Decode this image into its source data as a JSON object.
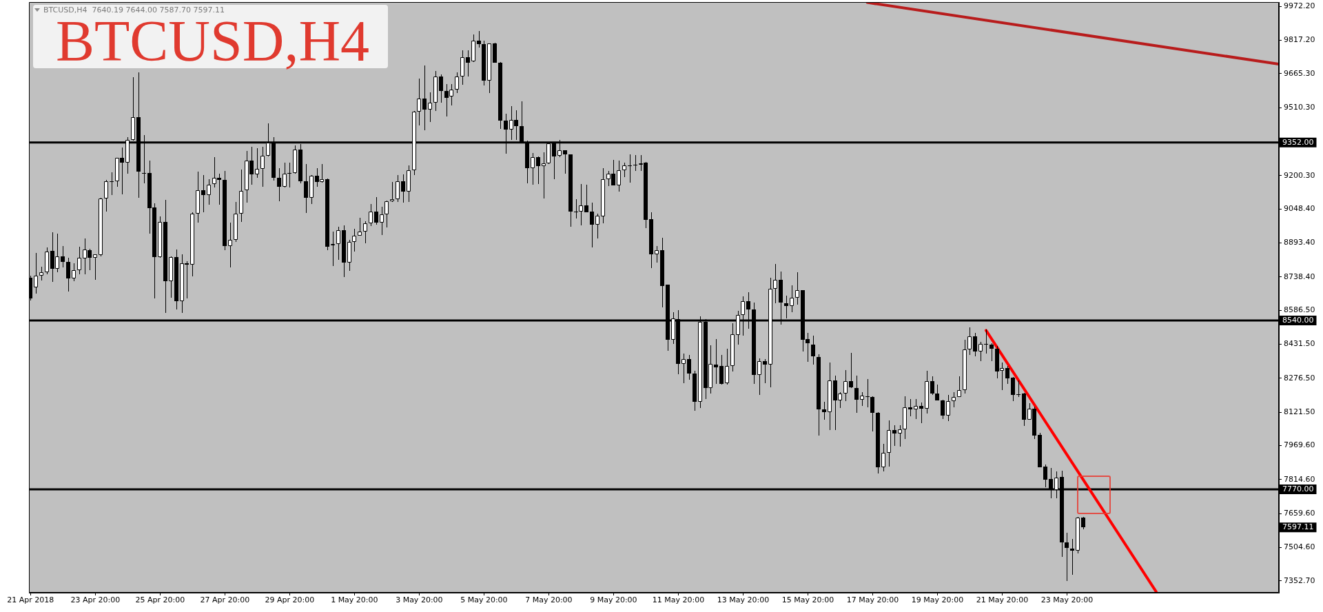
{
  "chart_data": {
    "type": "candlestick",
    "title": "BTCUSD,H4",
    "subtitle": "BTCUSD,H4  7640.19 7644.00 7587.70 7597.11",
    "x": [
      "2018-04-21T20:00",
      "2018-04-22T00:00",
      "2018-04-22T04:00",
      "2018-04-22T08:00",
      "2018-04-22T12:00",
      "2018-04-22T16:00",
      "2018-04-22T20:00",
      "2018-04-23T00:00",
      "2018-04-23T04:00",
      "2018-04-23T08:00",
      "2018-04-23T12:00",
      "2018-04-23T16:00",
      "2018-04-23T20:00",
      "2018-04-24T00:00",
      "2018-04-24T04:00",
      "2018-04-24T08:00",
      "2018-04-24T12:00",
      "2018-04-24T16:00",
      "2018-04-24T20:00",
      "2018-04-25T00:00",
      "2018-04-25T04:00",
      "2018-04-25T08:00",
      "2018-04-25T12:00",
      "2018-04-25T16:00",
      "2018-04-25T20:00",
      "2018-04-26T00:00",
      "2018-04-26T04:00",
      "2018-04-26T08:00",
      "2018-04-26T12:00",
      "2018-04-26T16:00",
      "2018-04-26T20:00",
      "2018-04-27T00:00",
      "2018-04-27T04:00",
      "2018-04-27T08:00",
      "2018-04-27T12:00",
      "2018-04-27T16:00",
      "2018-04-27T20:00",
      "2018-04-28T00:00",
      "2018-04-28T04:00",
      "2018-04-28T08:00",
      "2018-04-28T12:00",
      "2018-04-28T16:00",
      "2018-04-28T20:00",
      "2018-04-29T00:00",
      "2018-04-29T04:00",
      "2018-04-29T08:00",
      "2018-04-29T12:00",
      "2018-04-29T16:00",
      "2018-04-29T20:00",
      "2018-04-30T00:00",
      "2018-04-30T04:00",
      "2018-04-30T08:00",
      "2018-04-30T12:00",
      "2018-04-30T16:00",
      "2018-04-30T20:00",
      "2018-05-01T00:00",
      "2018-05-01T04:00",
      "2018-05-01T08:00",
      "2018-05-01T12:00",
      "2018-05-01T16:00",
      "2018-05-01T20:00",
      "2018-05-02T00:00",
      "2018-05-02T04:00",
      "2018-05-02T08:00",
      "2018-05-02T12:00",
      "2018-05-02T16:00",
      "2018-05-02T20:00",
      "2018-05-03T00:00",
      "2018-05-03T04:00",
      "2018-05-03T08:00",
      "2018-05-03T12:00",
      "2018-05-03T16:00",
      "2018-05-03T20:00",
      "2018-05-04T00:00",
      "2018-05-04T04:00",
      "2018-05-04T08:00",
      "2018-05-04T12:00",
      "2018-05-04T16:00",
      "2018-05-04T20:00",
      "2018-05-05T00:00",
      "2018-05-05T04:00",
      "2018-05-05T08:00",
      "2018-05-05T12:00",
      "2018-05-05T16:00",
      "2018-05-05T20:00",
      "2018-05-06T00:00",
      "2018-05-06T04:00",
      "2018-05-06T08:00",
      "2018-05-06T12:00",
      "2018-05-06T16:00",
      "2018-05-06T20:00",
      "2018-05-07T00:00",
      "2018-05-07T04:00",
      "2018-05-07T08:00",
      "2018-05-07T12:00",
      "2018-05-07T16:00",
      "2018-05-07T20:00",
      "2018-05-08T00:00",
      "2018-05-08T04:00",
      "2018-05-08T08:00",
      "2018-05-08T12:00",
      "2018-05-08T16:00",
      "2018-05-08T20:00",
      "2018-05-09T00:00",
      "2018-05-09T04:00",
      "2018-05-09T08:00",
      "2018-05-09T12:00",
      "2018-05-09T16:00",
      "2018-05-09T20:00",
      "2018-05-10T00:00",
      "2018-05-10T04:00",
      "2018-05-10T08:00",
      "2018-05-10T12:00",
      "2018-05-10T16:00",
      "2018-05-10T20:00",
      "2018-05-11T00:00",
      "2018-05-11T04:00",
      "2018-05-11T08:00",
      "2018-05-11T12:00",
      "2018-05-11T16:00",
      "2018-05-11T20:00",
      "2018-05-12T00:00",
      "2018-05-12T04:00",
      "2018-05-12T08:00",
      "2018-05-12T12:00",
      "2018-05-12T16:00",
      "2018-05-12T20:00",
      "2018-05-13T00:00",
      "2018-05-13T04:00",
      "2018-05-13T08:00",
      "2018-05-13T12:00",
      "2018-05-13T16:00",
      "2018-05-13T20:00",
      "2018-05-14T00:00",
      "2018-05-14T04:00",
      "2018-05-14T08:00",
      "2018-05-14T12:00",
      "2018-05-14T16:00",
      "2018-05-14T20:00",
      "2018-05-15T00:00",
      "2018-05-15T04:00",
      "2018-05-15T08:00",
      "2018-05-15T12:00",
      "2018-05-15T16:00",
      "2018-05-15T20:00",
      "2018-05-16T00:00",
      "2018-05-16T04:00",
      "2018-05-16T08:00",
      "2018-05-16T12:00",
      "2018-05-16T16:00",
      "2018-05-16T20:00",
      "2018-05-17T00:00",
      "2018-05-17T04:00",
      "2018-05-17T08:00",
      "2018-05-17T12:00",
      "2018-05-17T16:00",
      "2018-05-17T20:00",
      "2018-05-18T00:00",
      "2018-05-18T04:00",
      "2018-05-18T08:00",
      "2018-05-18T12:00",
      "2018-05-18T16:00",
      "2018-05-18T20:00",
      "2018-05-19T00:00",
      "2018-05-19T04:00",
      "2018-05-19T08:00",
      "2018-05-19T12:00",
      "2018-05-19T16:00",
      "2018-05-19T20:00",
      "2018-05-20T00:00",
      "2018-05-20T04:00",
      "2018-05-20T08:00",
      "2018-05-20T12:00",
      "2018-05-20T16:00",
      "2018-05-20T20:00",
      "2018-05-21T00:00",
      "2018-05-21T04:00",
      "2018-05-21T08:00",
      "2018-05-21T12:00",
      "2018-05-21T16:00",
      "2018-05-21T20:00",
      "2018-05-22T00:00",
      "2018-05-22T04:00",
      "2018-05-22T08:00",
      "2018-05-22T12:00",
      "2018-05-22T16:00",
      "2018-05-22T20:00",
      "2018-05-23T00:00",
      "2018-05-23T04:00",
      "2018-05-23T08:00",
      "2018-05-23T12:00",
      "2018-05-23T16:00",
      "2018-05-23T20:00",
      "2018-05-24T00:00",
      "2018-05-24T04:00",
      "2018-05-24T08:00"
    ],
    "ohlc": [
      [
        8734,
        8745,
        8630,
        8640
      ],
      [
        8690,
        8849,
        8663,
        8744
      ],
      [
        8744,
        8786,
        8723,
        8760
      ],
      [
        8760,
        8872,
        8750,
        8856
      ],
      [
        8857,
        8941,
        8715,
        8776
      ],
      [
        8776,
        8935,
        8760,
        8833
      ],
      [
        8833,
        8879,
        8781,
        8807
      ],
      [
        8807,
        8825,
        8671,
        8732
      ],
      [
        8732,
        8802,
        8718,
        8771
      ],
      [
        8771,
        8875,
        8750,
        8825
      ],
      [
        8823,
        8914,
        8750,
        8863
      ],
      [
        8860,
        8867,
        8771,
        8825
      ],
      [
        8825,
        8843,
        8726,
        8841
      ],
      [
        8839,
        9098,
        8833,
        9095
      ],
      [
        9095,
        9182,
        9038,
        9174
      ],
      [
        9174,
        9216,
        9113,
        9174
      ],
      [
        9174,
        9283,
        9151,
        9281
      ],
      [
        9281,
        9328,
        9116,
        9261
      ],
      [
        9261,
        9375,
        9211,
        9363
      ],
      [
        9363,
        9648,
        9360,
        9467
      ],
      [
        9467,
        9672,
        9099,
        9218
      ],
      [
        9213,
        9386,
        9167,
        9212
      ],
      [
        9213,
        9268,
        8935,
        9053
      ],
      [
        9056,
        9074,
        8640,
        8830
      ],
      [
        8830,
        9015,
        8826,
        8989
      ],
      [
        8989,
        9090,
        8574,
        8720
      ],
      [
        8720,
        8833,
        8645,
        8828
      ],
      [
        8828,
        8865,
        8592,
        8627
      ],
      [
        8627,
        8841,
        8575,
        8800
      ],
      [
        8800,
        8809,
        8642,
        8794
      ],
      [
        8794,
        9033,
        8742,
        9027
      ],
      [
        9027,
        9218,
        8985,
        9134
      ],
      [
        9134,
        9203,
        9033,
        9111
      ],
      [
        9111,
        9184,
        9067,
        9158
      ],
      [
        9161,
        9284,
        9146,
        9190
      ],
      [
        9190,
        9208,
        9067,
        9182
      ],
      [
        9181,
        9221,
        8862,
        8881
      ],
      [
        8881,
        8987,
        8781,
        8907
      ],
      [
        8907,
        9080,
        8899,
        9027
      ],
      [
        9027,
        9228,
        8991,
        9132
      ],
      [
        9135,
        9312,
        9078,
        9268
      ],
      [
        9268,
        9331,
        9158,
        9205
      ],
      [
        9205,
        9325,
        9190,
        9230
      ],
      [
        9230,
        9331,
        9151,
        9292
      ],
      [
        9292,
        9438,
        9287,
        9352
      ],
      [
        9352,
        9375,
        9179,
        9192
      ],
      [
        9192,
        9234,
        9085,
        9151
      ],
      [
        9151,
        9261,
        9148,
        9211
      ],
      [
        9212,
        9261,
        9148,
        9212
      ],
      [
        9212,
        9338,
        9211,
        9321
      ],
      [
        9321,
        9345,
        9164,
        9176
      ],
      [
        9176,
        9253,
        9030,
        9098
      ],
      [
        9098,
        9203,
        9072,
        9200
      ],
      [
        9200,
        9234,
        9151,
        9171
      ],
      [
        9171,
        9253,
        9170,
        9185
      ],
      [
        9185,
        9187,
        8860,
        8877
      ],
      [
        8883,
        8946,
        8788,
        8889
      ],
      [
        8889,
        8967,
        8818,
        8951
      ],
      [
        8951,
        8975,
        8739,
        8805
      ],
      [
        8805,
        8907,
        8765,
        8898
      ],
      [
        8898,
        8957,
        8854,
        8928
      ],
      [
        8928,
        9008,
        8927,
        8946
      ],
      [
        8946,
        8994,
        8893,
        8982
      ],
      [
        8982,
        9072,
        8972,
        9036
      ],
      [
        9036,
        9103,
        8977,
        8985
      ],
      [
        8985,
        9059,
        8931,
        9025
      ],
      [
        9025,
        9087,
        8964,
        9083
      ],
      [
        9083,
        9172,
        9082,
        9092
      ],
      [
        9092,
        9203,
        9080,
        9174
      ],
      [
        9174,
        9205,
        9077,
        9127
      ],
      [
        9127,
        9247,
        9080,
        9226
      ],
      [
        9226,
        9494,
        9202,
        9491
      ],
      [
        9491,
        9643,
        9428,
        9553
      ],
      [
        9553,
        9703,
        9407,
        9501
      ],
      [
        9501,
        9579,
        9446,
        9532
      ],
      [
        9532,
        9677,
        9494,
        9653
      ],
      [
        9653,
        9661,
        9532,
        9588
      ],
      [
        9588,
        9617,
        9470,
        9556
      ],
      [
        9562,
        9617,
        9522,
        9593
      ],
      [
        9593,
        9672,
        9577,
        9653
      ],
      [
        9653,
        9773,
        9614,
        9740
      ],
      [
        9740,
        9771,
        9653,
        9717
      ],
      [
        9721,
        9845,
        9719,
        9815
      ],
      [
        9815,
        9860,
        9784,
        9799
      ],
      [
        9799,
        9815,
        9612,
        9635
      ],
      [
        9635,
        9805,
        9577,
        9803
      ],
      [
        9803,
        9808,
        9715,
        9717
      ],
      [
        9717,
        9719,
        9413,
        9450
      ],
      [
        9450,
        9483,
        9302,
        9410
      ],
      [
        9410,
        9518,
        9365,
        9454
      ],
      [
        9454,
        9499,
        9365,
        9426
      ],
      [
        9426,
        9539,
        9352,
        9354
      ],
      [
        9354,
        9361,
        9167,
        9234
      ],
      [
        9234,
        9303,
        9158,
        9286
      ],
      [
        9286,
        9288,
        9161,
        9244
      ],
      [
        9244,
        9307,
        9095,
        9258
      ],
      [
        9258,
        9348,
        9255,
        9347
      ],
      [
        9347,
        9350,
        9184,
        9289
      ],
      [
        9291,
        9365,
        9284,
        9316
      ],
      [
        9316,
        9317,
        9211,
        9297
      ],
      [
        9297,
        9299,
        8967,
        9036
      ],
      [
        9036,
        9092,
        9006,
        9036
      ],
      [
        9036,
        9161,
        8975,
        9066
      ],
      [
        9066,
        9158,
        9033,
        9035
      ],
      [
        9036,
        9077,
        8874,
        8978
      ],
      [
        8978,
        9027,
        8915,
        9017
      ],
      [
        9014,
        9235,
        8983,
        9184
      ],
      [
        9184,
        9221,
        9153,
        9209
      ],
      [
        9209,
        9271,
        9155,
        9157
      ],
      [
        9157,
        9268,
        9129,
        9226
      ],
      [
        9226,
        9260,
        9195,
        9246
      ],
      [
        9247,
        9298,
        9169,
        9247
      ],
      [
        9249,
        9295,
        9223,
        9249
      ],
      [
        9249,
        9295,
        9223,
        9258
      ],
      [
        9260,
        9262,
        8962,
        9000
      ],
      [
        9002,
        9034,
        8780,
        8843
      ],
      [
        8843,
        8879,
        8805,
        8860
      ],
      [
        8860,
        8916,
        8601,
        8698
      ],
      [
        8703,
        8705,
        8403,
        8453
      ],
      [
        8453,
        8577,
        8432,
        8551
      ],
      [
        8548,
        8587,
        8294,
        8343
      ],
      [
        8343,
        8388,
        8255,
        8365
      ],
      [
        8365,
        8383,
        8271,
        8299
      ],
      [
        8299,
        8310,
        8129,
        8170
      ],
      [
        8170,
        8558,
        8142,
        8533
      ],
      [
        8535,
        8545,
        8182,
        8233
      ],
      [
        8233,
        8427,
        8208,
        8341
      ],
      [
        8338,
        8455,
        8252,
        8328
      ],
      [
        8333,
        8383,
        8247,
        8252
      ],
      [
        8255,
        8411,
        8249,
        8334
      ],
      [
        8334,
        8527,
        8308,
        8476
      ],
      [
        8474,
        8585,
        8430,
        8566
      ],
      [
        8566,
        8650,
        8472,
        8627
      ],
      [
        8627,
        8669,
        8504,
        8589
      ],
      [
        8589,
        8621,
        8252,
        8291
      ],
      [
        8291,
        8367,
        8200,
        8355
      ],
      [
        8355,
        8364,
        8255,
        8338
      ],
      [
        8338,
        8734,
        8234,
        8684
      ],
      [
        8684,
        8799,
        8619,
        8726
      ],
      [
        8726,
        8763,
        8522,
        8621
      ],
      [
        8619,
        8653,
        8551,
        8605
      ],
      [
        8605,
        8700,
        8579,
        8643
      ],
      [
        8643,
        8760,
        8614,
        8678
      ],
      [
        8678,
        8680,
        8399,
        8453
      ],
      [
        8454,
        8483,
        8352,
        8435
      ],
      [
        8430,
        8470,
        8339,
        8376
      ],
      [
        8373,
        8385,
        8016,
        8134
      ],
      [
        8134,
        8168,
        8088,
        8121
      ],
      [
        8121,
        8348,
        8040,
        8268
      ],
      [
        8268,
        8289,
        8040,
        8177
      ],
      [
        8177,
        8212,
        8142,
        8208
      ],
      [
        8208,
        8313,
        8173,
        8265
      ],
      [
        8265,
        8391,
        8233,
        8236
      ],
      [
        8233,
        8289,
        8119,
        8179
      ],
      [
        8179,
        8213,
        8150,
        8197
      ],
      [
        8194,
        8273,
        8145,
        8194
      ],
      [
        8192,
        8194,
        8034,
        8119
      ],
      [
        8119,
        8121,
        7843,
        7870
      ],
      [
        7870,
        7977,
        7852,
        7938
      ],
      [
        7938,
        8086,
        7875,
        8042
      ],
      [
        8042,
        8063,
        7969,
        8024
      ],
      [
        8024,
        8063,
        7964,
        8045
      ],
      [
        8045,
        8194,
        8000,
        8144
      ],
      [
        8145,
        8181,
        8102,
        8134
      ],
      [
        8134,
        8181,
        8090,
        8152
      ],
      [
        8152,
        8166,
        8071,
        8137
      ],
      [
        8137,
        8310,
        8116,
        8265
      ],
      [
        8265,
        8286,
        8200,
        8208
      ],
      [
        8208,
        8247,
        8175,
        8177
      ],
      [
        8176,
        8178,
        8092,
        8107
      ],
      [
        8107,
        8200,
        8081,
        8173
      ],
      [
        8173,
        8212,
        8145,
        8192
      ],
      [
        8192,
        8287,
        8191,
        8223
      ],
      [
        8224,
        8451,
        8208,
        8407
      ],
      [
        8407,
        8509,
        8383,
        8467
      ],
      [
        8467,
        8483,
        8376,
        8399
      ],
      [
        8399,
        8443,
        8354,
        8432
      ],
      [
        8432,
        8498,
        8390,
        8432
      ],
      [
        8430,
        8435,
        8355,
        8411
      ],
      [
        8412,
        8423,
        8276,
        8308
      ],
      [
        8310,
        8348,
        8224,
        8323
      ],
      [
        8323,
        8334,
        8252,
        8276
      ],
      [
        8280,
        8281,
        8173,
        8202
      ],
      [
        8205,
        8268,
        8192,
        8205
      ],
      [
        8207,
        8209,
        8060,
        8088
      ],
      [
        8088,
        8163,
        8087,
        8137
      ],
      [
        8137,
        8149,
        8000,
        8016
      ],
      [
        8018,
        8027,
        7870,
        7872
      ],
      [
        7873,
        7885,
        7781,
        7815
      ],
      [
        7817,
        7867,
        7731,
        7770
      ],
      [
        7767,
        7851,
        7728,
        7825
      ],
      [
        7826,
        7854,
        7463,
        7529
      ],
      [
        7529,
        7573,
        7353,
        7503
      ],
      [
        7500,
        7545,
        7380,
        7492
      ],
      [
        7492,
        7644,
        7477,
        7640
      ],
      [
        7640.19,
        7644.0,
        7587.7,
        7597.11
      ]
    ],
    "colors": [
      "#000000",
      "#ffffff",
      "#ffffff",
      "#ffffff",
      "#000000",
      "#ffffff",
      "#000000",
      "#000000",
      "#ffffff",
      "#ffffff",
      "#ffffff",
      "#000000",
      "#ffffff",
      "#ffffff",
      "#ffffff",
      "#000000",
      "#ffffff",
      "#000000",
      "#ffffff",
      "#ffffff",
      "#000000",
      "#000000",
      "#000000",
      "#000000",
      "#ffffff",
      "#000000",
      "#ffffff",
      "#000000",
      "#ffffff",
      "#000000",
      "#ffffff",
      "#ffffff",
      "#000000",
      "#ffffff",
      "#ffffff",
      "#000000",
      "#000000",
      "#ffffff",
      "#ffffff",
      "#ffffff",
      "#ffffff",
      "#000000",
      "#ffffff",
      "#ffffff",
      "#ffffff",
      "#000000",
      "#000000",
      "#ffffff",
      "#000000",
      "#ffffff",
      "#000000",
      "#000000",
      "#ffffff",
      "#000000",
      "#ffffff",
      "#000000",
      "#ffffff",
      "#ffffff",
      "#000000",
      "#ffffff",
      "#ffffff",
      "#ffffff",
      "#ffffff",
      "#ffffff",
      "#000000",
      "#ffffff",
      "#ffffff",
      "#ffffff",
      "#ffffff",
      "#000000",
      "#ffffff",
      "#ffffff",
      "#ffffff",
      "#000000",
      "#ffffff",
      "#ffffff",
      "#000000",
      "#000000",
      "#ffffff",
      "#ffffff",
      "#ffffff",
      "#000000",
      "#ffffff",
      "#000000",
      "#000000",
      "#ffffff",
      "#000000",
      "#000000",
      "#000000",
      "#ffffff",
      "#000000",
      "#000000",
      "#000000",
      "#ffffff",
      "#000000",
      "#ffffff",
      "#ffffff",
      "#000000",
      "#ffffff",
      "#000000",
      "#000000",
      "#000000",
      "#ffffff",
      "#000000",
      "#000000",
      "#ffffff",
      "#ffffff",
      "#ffffff",
      "#000000",
      "#ffffff",
      "#ffffff",
      "#000000",
      "#000000",
      "#ffffff",
      "#000000",
      "#000000",
      "#ffffff",
      "#000000",
      "#000000",
      "#ffffff",
      "#000000",
      "#ffffff",
      "#000000",
      "#000000",
      "#ffffff",
      "#000000",
      "#ffffff",
      "#000000",
      "#000000",
      "#ffffff",
      "#ffffff",
      "#ffffff",
      "#ffffff",
      "#000000",
      "#000000",
      "#ffffff",
      "#000000",
      "#ffffff",
      "#ffffff",
      "#000000",
      "#000000",
      "#ffffff",
      "#ffffff",
      "#000000",
      "#000000",
      "#000000",
      "#000000",
      "#000000",
      "#ffffff",
      "#000000",
      "#ffffff",
      "#ffffff",
      "#000000",
      "#000000",
      "#ffffff",
      "#000000",
      "#000000",
      "#000000",
      "#ffffff",
      "#ffffff",
      "#000000",
      "#ffffff",
      "#ffffff",
      "#000000",
      "#ffffff",
      "#000000",
      "#ffffff",
      "#000000",
      "#000000",
      "#000000",
      "#ffffff",
      "#ffffff",
      "#ffffff",
      "#ffffff",
      "#ffffff",
      "#000000",
      "#ffffff",
      "#000000",
      "#000000",
      "#000000",
      "#ffffff",
      "#000000",
      "#000000",
      "#000000",
      "#000000",
      "#ffffff",
      "#000000",
      "#000000",
      "#000000",
      "#000000",
      "#ffffff",
      "#000000",
      "#000000",
      "#000000",
      "#ffffff",
      "#000000"
    ],
    "series": [
      {
        "type": "line",
        "color": "#ff0000",
        "x": [
          "2018-05-21T08:00",
          "2018-05-26T14:00"
        ],
        "values": [
          8495,
          7304
        ]
      },
      {
        "type": "line",
        "color": "#b81c1c",
        "x": [
          "2018-05-17T16:00",
          "2018-05-30T09:00"
        ],
        "values": [
          9990,
          9709
        ]
      }
    ],
    "xlim": [
      "2018-04-21T18:50",
      "2018-05-30T09:00"
    ],
    "xticks": [
      {
        "value": "2018-04-21T20:00",
        "label": "21 Apr 2018"
      },
      {
        "value": "2018-04-23T20:00",
        "label": "23 Apr 20:00"
      },
      {
        "value": "2018-04-25T20:00",
        "label": "25 Apr 20:00"
      },
      {
        "value": "2018-04-27T20:00",
        "label": "27 Apr 20:00"
      },
      {
        "value": "2018-04-29T20:00",
        "label": "29 Apr 20:00"
      },
      {
        "value": "2018-05-01T20:00",
        "label": "1 May 20:00"
      },
      {
        "value": "2018-05-03T20:00",
        "label": "3 May 20:00"
      },
      {
        "value": "2018-05-05T20:00",
        "label": "5 May 20:00"
      },
      {
        "value": "2018-05-07T20:00",
        "label": "7 May 20:00"
      },
      {
        "value": "2018-05-09T20:00",
        "label": "9 May 20:00"
      },
      {
        "value": "2018-05-11T20:00",
        "label": "11 May 20:00"
      },
      {
        "value": "2018-05-13T20:00",
        "label": "13 May 20:00"
      },
      {
        "value": "2018-05-15T20:00",
        "label": "15 May 20:00"
      },
      {
        "value": "2018-05-17T20:00",
        "label": "17 May 20:00"
      },
      {
        "value": "2018-05-19T20:00",
        "label": "19 May 20:00"
      },
      {
        "value": "2018-05-21T20:00",
        "label": "21 May 20:00"
      },
      {
        "value": "2018-05-23T20:00",
        "label": "23 May 20:00"
      }
    ],
    "ylim": [
      7299,
      9992
    ],
    "yticks": [
      {
        "value": 9972.2,
        "label": "9972.20"
      },
      {
        "value": 9817.2,
        "label": "9817.20"
      },
      {
        "value": 9665.3,
        "label": "9665.30"
      },
      {
        "value": 9510.3,
        "label": "9510.30"
      },
      {
        "value": 9200.3,
        "label": "9200.30"
      },
      {
        "value": 9048.4,
        "label": "9048.40"
      },
      {
        "value": 8893.4,
        "label": "8893.40"
      },
      {
        "value": 8738.4,
        "label": "8738.40"
      },
      {
        "value": 8586.5,
        "label": "8586.50"
      },
      {
        "value": 8431.5,
        "label": "8431.50"
      },
      {
        "value": 8276.5,
        "label": "8276.50"
      },
      {
        "value": 8121.5,
        "label": "8121.50"
      },
      {
        "value": 7969.6,
        "label": "7969.60"
      },
      {
        "value": 7814.6,
        "label": "7814.60"
      },
      {
        "value": 7659.6,
        "label": "7659.60"
      },
      {
        "value": 7504.6,
        "label": "7504.60"
      },
      {
        "value": 7352.7,
        "label": "7352.70"
      }
    ],
    "ref_lines": [
      {
        "axis": "y",
        "value": 9352,
        "label": "9352.00",
        "color": "#000000"
      },
      {
        "axis": "y",
        "value": 8540,
        "label": "8540.00",
        "color": "#000000"
      },
      {
        "axis": "y",
        "value": 7770,
        "label": "7770.00",
        "color": "#000000"
      }
    ],
    "annotations": [
      "7597.11"
    ]
  }
}
